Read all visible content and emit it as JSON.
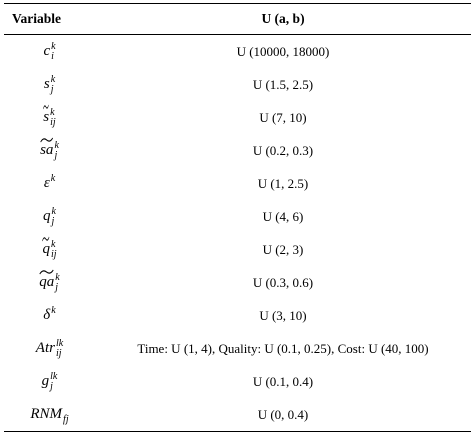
{
  "table": {
    "header": [
      "Variable",
      "U (a, b)"
    ],
    "rows": [
      {
        "variable": {
          "base": "c",
          "sub": "i",
          "sup": "k"
        },
        "distribution": "U (10000, 18000)"
      },
      {
        "variable": {
          "base": "s",
          "sub": "j",
          "sup": "k"
        },
        "distribution": "U (1.5, 2.5)"
      },
      {
        "variable": {
          "base": "s",
          "sub": "ij",
          "sup": "k",
          "accent": "tilde"
        },
        "distribution": "U (7, 10)"
      },
      {
        "variable": {
          "base": "sa",
          "sub": "j",
          "sup": "k",
          "accent": "tilde"
        },
        "distribution": "U (0.2, 0.3)"
      },
      {
        "variable": {
          "base": "ε",
          "sup": "k"
        },
        "distribution": "U (1, 2.5)"
      },
      {
        "variable": {
          "base": "q",
          "sub": "j",
          "sup": "k"
        },
        "distribution": "U (4, 6)"
      },
      {
        "variable": {
          "base": "q",
          "sub": "ij",
          "sup": "k",
          "accent": "tilde"
        },
        "distribution": "U (2, 3)"
      },
      {
        "variable": {
          "base": "qa",
          "sub": "j",
          "sup": "k",
          "accent": "tilde"
        },
        "distribution": "U (0.3, 0.6)"
      },
      {
        "variable": {
          "base": "δ",
          "sup": "k"
        },
        "distribution": "U (3, 10)"
      },
      {
        "variable": {
          "base": "Atr",
          "sub": "ij",
          "sup": "lk"
        },
        "distribution": "Time: U (1, 4), Quality: U (0.1, 0.25), Cost: U (40, 100)"
      },
      {
        "variable": {
          "base": "g",
          "sub": "j",
          "sup": "lk"
        },
        "distribution": "U (0.1, 0.4)"
      },
      {
        "variable": {
          "base": "RNM",
          "sub": "fj"
        },
        "distribution": "U (0, 0.4)"
      }
    ]
  }
}
